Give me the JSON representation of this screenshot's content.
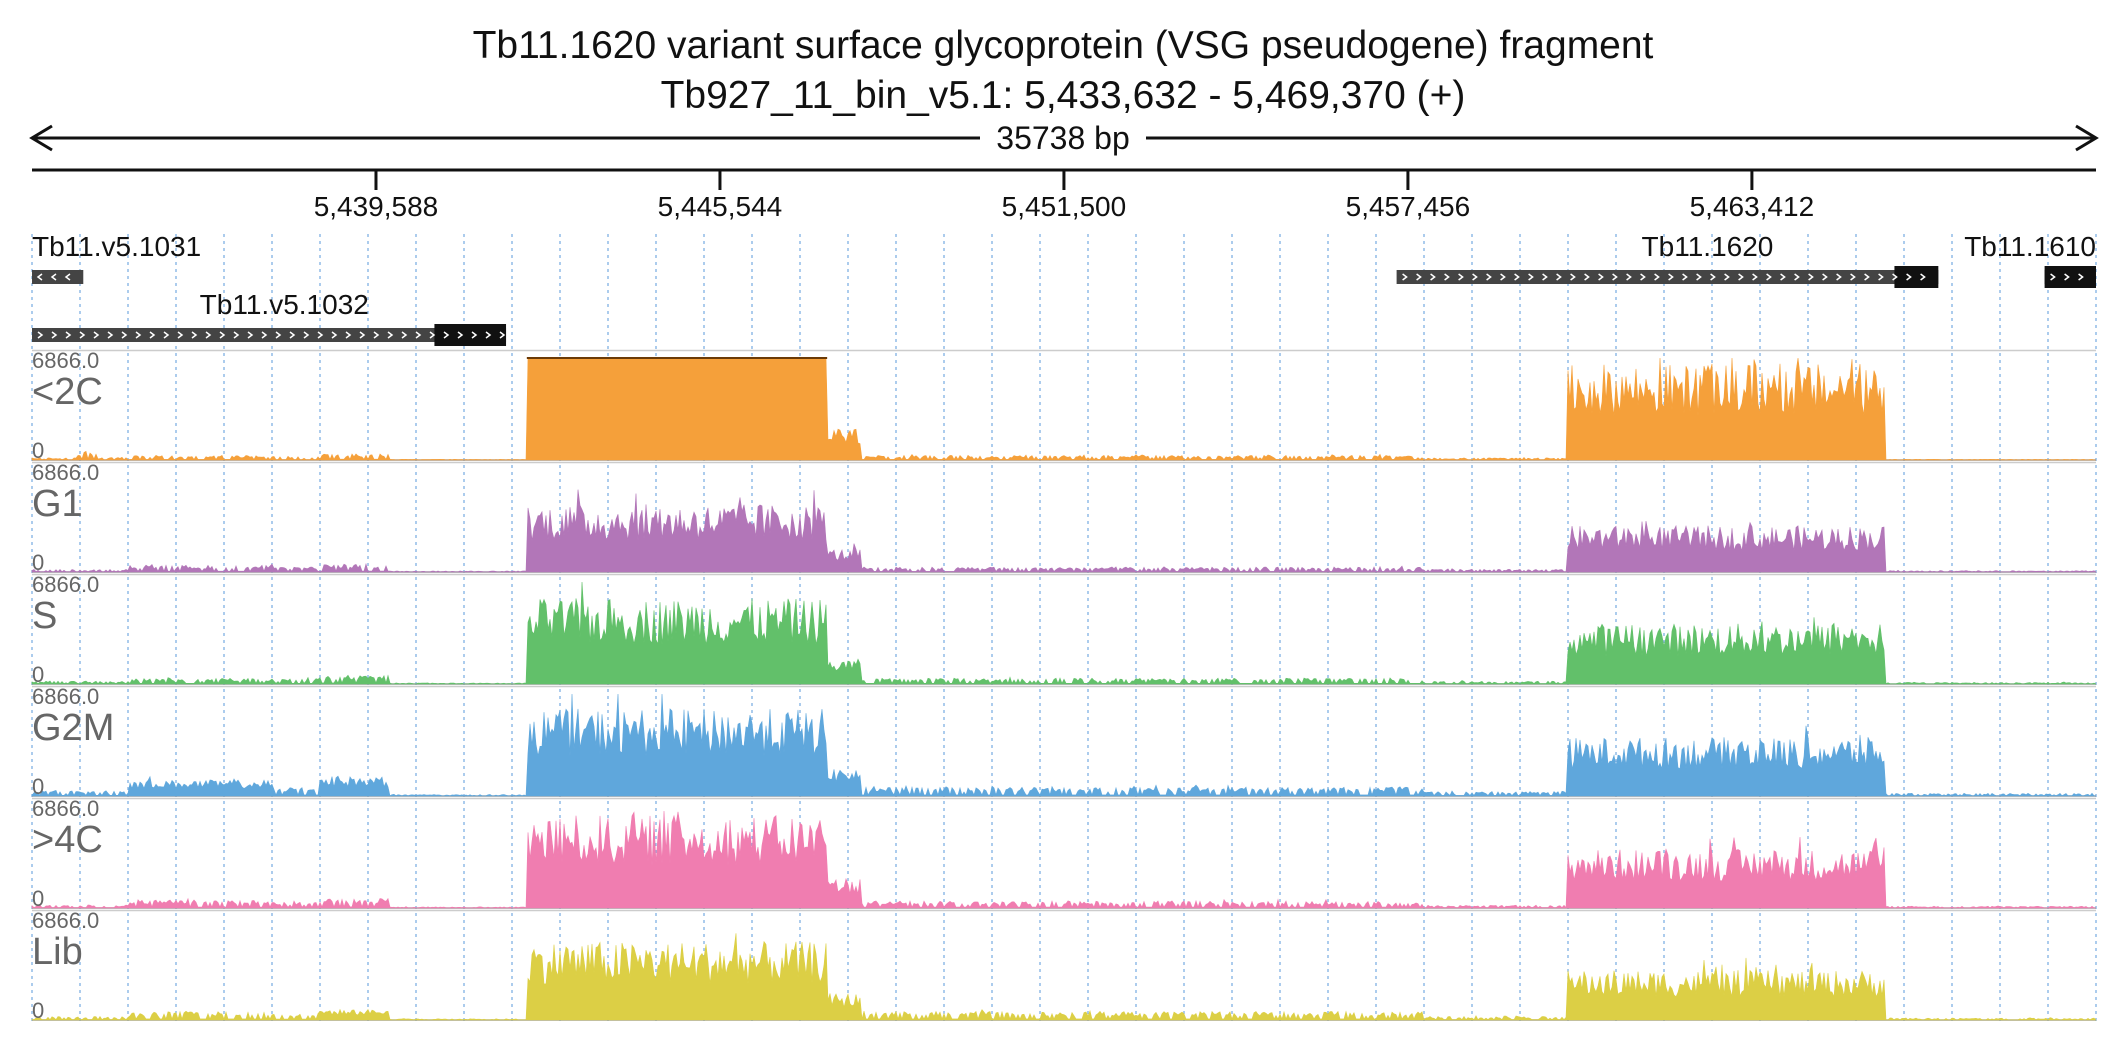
{
  "header": {
    "title_line1": "Tb11.1620  variant surface glycoprotein (VSG  pseudogene)  fragment",
    "title_line2": "Tb927_11_bin_v5.1: 5,433,632 - 5,469,370 (+)",
    "span_label": "35738 bp"
  },
  "chart_data": {
    "type": "area",
    "title": "Tb11.1620  variant surface glycoprotein (VSG  pseudogene)  fragment",
    "region": {
      "chromosome": "Tb927_11_bin_v5.1",
      "start": 5433632,
      "end": 5469370,
      "strand": "+"
    },
    "span_bp": 35738,
    "x_ticks": [
      5439588,
      5445544,
      5451500,
      5457456,
      5463412
    ],
    "x_tick_labels": [
      "5,439,588",
      "5,445,544",
      "5,451,500",
      "5,457,456",
      "5,463,412"
    ],
    "grid": true,
    "genes": [
      {
        "name": "Tb11.v5.1031",
        "start": 5433632,
        "end": 5434520,
        "strand": "-",
        "cds_start": null,
        "cds_end": null
      },
      {
        "name": "Tb11.v5.1032",
        "start": 5433632,
        "end": 5441840,
        "strand": "+",
        "cds_start": 5440600,
        "cds_end": 5441840
      },
      {
        "name": "Tb11.1620",
        "start": 5457260,
        "end": 5466640,
        "strand": "+",
        "cds_start": 5465880,
        "cds_end": 5466640
      },
      {
        "name": "Tb11.1610",
        "start": 5468480,
        "end": 5469370,
        "strand": "+",
        "cds_start": 5468480,
        "cds_end": 5469370
      }
    ],
    "ylim": [
      0,
      6866.0
    ],
    "y_max_label": "6866.0",
    "y_min_label": "0",
    "features": [
      {
        "start": 5442200,
        "end": 5447400,
        "kind": "high-coverage block"
      },
      {
        "start": 5460200,
        "end": 5465720,
        "kind": "high-coverage block"
      }
    ],
    "series": [
      {
        "name": "<2C",
        "color": "#f5a03a",
        "profile": [
          {
            "start": 5433632,
            "end": 5434400,
            "level": 120
          },
          {
            "start": 5434400,
            "end": 5434800,
            "level": 500
          },
          {
            "start": 5434800,
            "end": 5435300,
            "level": 150
          },
          {
            "start": 5435300,
            "end": 5437800,
            "level": 260
          },
          {
            "start": 5437800,
            "end": 5438600,
            "level": 220
          },
          {
            "start": 5438600,
            "end": 5439800,
            "level": 360
          },
          {
            "start": 5439800,
            "end": 5442200,
            "level": 40
          },
          {
            "start": 5442200,
            "end": 5447400,
            "level": 6866
          },
          {
            "start": 5447400,
            "end": 5448000,
            "level": 1800
          },
          {
            "start": 5448000,
            "end": 5457700,
            "level": 260
          },
          {
            "start": 5457700,
            "end": 5460200,
            "level": 120
          },
          {
            "start": 5460200,
            "end": 5465720,
            "level": 5400
          },
          {
            "start": 5465720,
            "end": 5469370,
            "level": 40
          }
        ]
      },
      {
        "name": "G1",
        "color": "#b276b8",
        "profile": [
          {
            "start": 5433632,
            "end": 5435300,
            "level": 150
          },
          {
            "start": 5435300,
            "end": 5437800,
            "level": 380
          },
          {
            "start": 5437800,
            "end": 5438600,
            "level": 300
          },
          {
            "start": 5438600,
            "end": 5439800,
            "level": 450
          },
          {
            "start": 5439800,
            "end": 5442200,
            "level": 60
          },
          {
            "start": 5442200,
            "end": 5447400,
            "level": 3800
          },
          {
            "start": 5447400,
            "end": 5448000,
            "level": 1300
          },
          {
            "start": 5448000,
            "end": 5457700,
            "level": 280
          },
          {
            "start": 5457700,
            "end": 5460200,
            "level": 150
          },
          {
            "start": 5460200,
            "end": 5465720,
            "level": 2600
          },
          {
            "start": 5465720,
            "end": 5469370,
            "level": 80
          }
        ]
      },
      {
        "name": "S",
        "color": "#62c06a",
        "profile": [
          {
            "start": 5433632,
            "end": 5435300,
            "level": 160
          },
          {
            "start": 5435300,
            "end": 5437800,
            "level": 320
          },
          {
            "start": 5437800,
            "end": 5438600,
            "level": 300
          },
          {
            "start": 5438600,
            "end": 5439800,
            "level": 500
          },
          {
            "start": 5439800,
            "end": 5442200,
            "level": 60
          },
          {
            "start": 5442200,
            "end": 5447400,
            "level": 4800
          },
          {
            "start": 5447400,
            "end": 5448000,
            "level": 1400
          },
          {
            "start": 5448000,
            "end": 5457700,
            "level": 330
          },
          {
            "start": 5457700,
            "end": 5460200,
            "level": 160
          },
          {
            "start": 5460200,
            "end": 5465720,
            "level": 3400
          },
          {
            "start": 5465720,
            "end": 5469370,
            "level": 90
          }
        ]
      },
      {
        "name": "G2M",
        "color": "#5fa7dc",
        "profile": [
          {
            "start": 5433632,
            "end": 5435300,
            "level": 300
          },
          {
            "start": 5435300,
            "end": 5437800,
            "level": 900
          },
          {
            "start": 5437800,
            "end": 5438600,
            "level": 500
          },
          {
            "start": 5438600,
            "end": 5439800,
            "level": 1100
          },
          {
            "start": 5439800,
            "end": 5442200,
            "level": 80
          },
          {
            "start": 5442200,
            "end": 5447400,
            "level": 4900
          },
          {
            "start": 5447400,
            "end": 5448000,
            "level": 1600
          },
          {
            "start": 5448000,
            "end": 5457700,
            "level": 500
          },
          {
            "start": 5457700,
            "end": 5460200,
            "level": 250
          },
          {
            "start": 5460200,
            "end": 5465720,
            "level": 3300
          },
          {
            "start": 5465720,
            "end": 5469370,
            "level": 150
          }
        ]
      },
      {
        "name": ">4C",
        "color": "#f07db0",
        "profile": [
          {
            "start": 5433632,
            "end": 5435300,
            "level": 170
          },
          {
            "start": 5435300,
            "end": 5437800,
            "level": 450
          },
          {
            "start": 5437800,
            "end": 5438600,
            "level": 350
          },
          {
            "start": 5438600,
            "end": 5439800,
            "level": 550
          },
          {
            "start": 5439800,
            "end": 5442200,
            "level": 70
          },
          {
            "start": 5442200,
            "end": 5447400,
            "level": 5200
          },
          {
            "start": 5447400,
            "end": 5448000,
            "level": 1700
          },
          {
            "start": 5448000,
            "end": 5457700,
            "level": 400
          },
          {
            "start": 5457700,
            "end": 5460200,
            "level": 160
          },
          {
            "start": 5460200,
            "end": 5465720,
            "level": 3300
          },
          {
            "start": 5465720,
            "end": 5469370,
            "level": 100
          }
        ]
      },
      {
        "name": "Lib",
        "color": "#dccf45",
        "profile": [
          {
            "start": 5433632,
            "end": 5435300,
            "level": 200
          },
          {
            "start": 5435300,
            "end": 5437800,
            "level": 480
          },
          {
            "start": 5437800,
            "end": 5438600,
            "level": 400
          },
          {
            "start": 5438600,
            "end": 5439800,
            "level": 600
          },
          {
            "start": 5439800,
            "end": 5442200,
            "level": 70
          },
          {
            "start": 5442200,
            "end": 5447400,
            "level": 4400
          },
          {
            "start": 5447400,
            "end": 5448000,
            "level": 1500
          },
          {
            "start": 5448000,
            "end": 5457700,
            "level": 480
          },
          {
            "start": 5457700,
            "end": 5460200,
            "level": 200
          },
          {
            "start": 5460200,
            "end": 5465720,
            "level": 2800
          },
          {
            "start": 5465720,
            "end": 5469370,
            "level": 110
          }
        ]
      }
    ]
  }
}
